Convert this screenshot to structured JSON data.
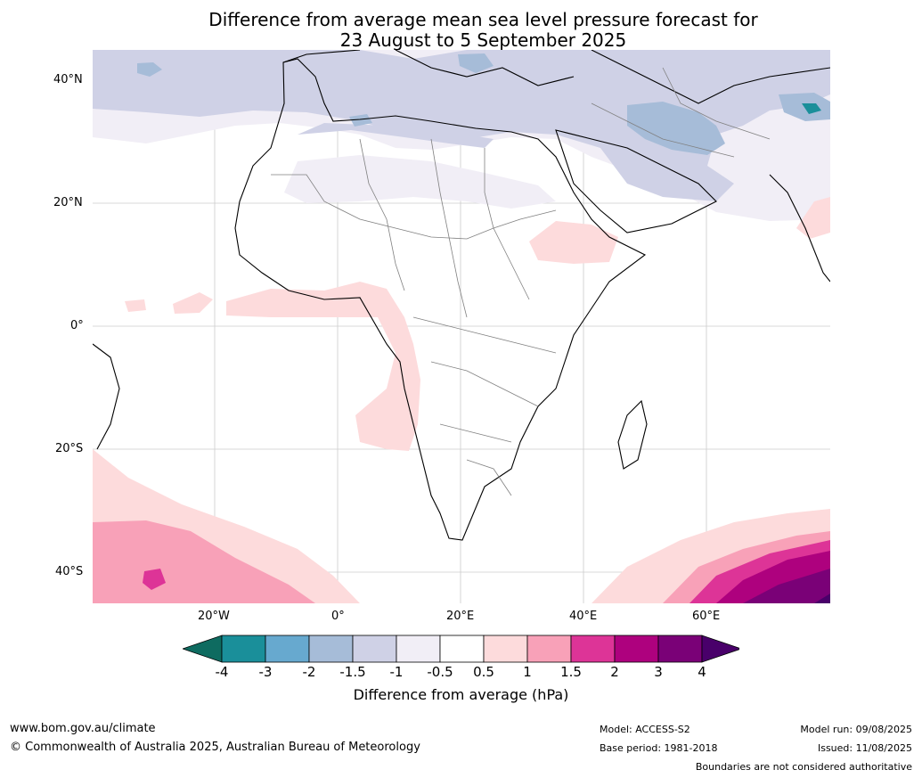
{
  "title": {
    "line1": "Difference from average mean sea level pressure forecast for",
    "line2": "23 August to 5 September 2025"
  },
  "map": {
    "lat_labels": [
      "40°N",
      "20°N",
      "0°",
      "20°S",
      "40°S"
    ],
    "lon_labels": [
      "20°W",
      "0°",
      "20°E",
      "40°E",
      "60°E"
    ]
  },
  "colorbar": {
    "label": "Difference from average (hPa)",
    "ticks": [
      "-4",
      "-3",
      "-2",
      "-1.5",
      "-1",
      "-0.5",
      "0.5",
      "1",
      "1.5",
      "2",
      "3",
      "4"
    ],
    "colors": [
      "#0e6b60",
      "#1a8f9a",
      "#67a9cf",
      "#a6bcd8",
      "#cfd1e6",
      "#f1eef6",
      "#ffffff",
      "#fddbdc",
      "#f8a1b8",
      "#dd3497",
      "#ae017e",
      "#7a0177",
      "#49006a"
    ]
  },
  "footer": {
    "url": "www.bom.gov.au/climate",
    "copyright": "© Commonwealth of Australia 2025, Australian Bureau of Meteorology",
    "model": "Model: ACCESS-S2",
    "base_period": "Base period: 1981-2018",
    "model_run": "Model run: 09/08/2025",
    "issued": "Issued: 11/08/2025",
    "disclaimer": "Boundaries are not considered authoritative"
  }
}
